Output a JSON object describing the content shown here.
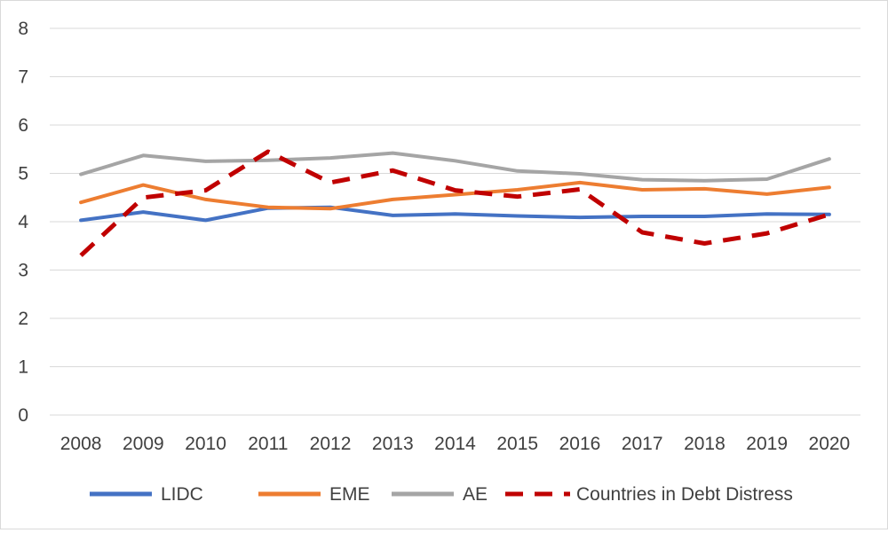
{
  "chart_data": {
    "type": "line",
    "title": "",
    "xlabel": "",
    "ylabel": "",
    "ylim": [
      0,
      8
    ],
    "yticks": [
      "0",
      "1",
      "2",
      "3",
      "4",
      "5",
      "6",
      "7",
      "8"
    ],
    "categories": [
      "2008",
      "2009",
      "2010",
      "2011",
      "2012",
      "2013",
      "2014",
      "2015",
      "2016",
      "2017",
      "2018",
      "2019",
      "2020"
    ],
    "grid": true,
    "legend_position": "bottom",
    "series": [
      {
        "name": "LIDC",
        "color": "#4472c4",
        "style": "solid",
        "values": [
          4.03,
          4.2,
          4.03,
          4.28,
          4.3,
          4.13,
          4.16,
          4.12,
          4.09,
          4.11,
          4.11,
          4.16,
          4.15
        ]
      },
      {
        "name": "EME",
        "color": "#ed7d31",
        "style": "solid",
        "values": [
          4.4,
          4.76,
          4.46,
          4.3,
          4.27,
          4.46,
          4.56,
          4.66,
          4.81,
          4.66,
          4.68,
          4.57,
          4.71
        ]
      },
      {
        "name": "AE",
        "color": "#a5a5a5",
        "style": "solid",
        "values": [
          4.98,
          5.37,
          5.25,
          5.27,
          5.32,
          5.42,
          5.26,
          5.05,
          4.99,
          4.87,
          4.85,
          4.88,
          5.3
        ]
      },
      {
        "name": "Countries in Debt Distress",
        "color": "#c00000",
        "style": "dashed",
        "values": [
          3.3,
          4.5,
          4.65,
          5.45,
          4.81,
          5.06,
          4.65,
          4.52,
          4.67,
          3.78,
          3.55,
          3.76,
          4.15
        ]
      }
    ]
  }
}
